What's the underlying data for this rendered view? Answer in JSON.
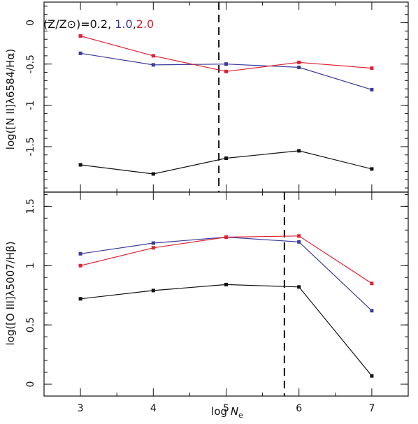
{
  "chart_data": [
    {
      "type": "line",
      "panel": "top",
      "xlabel": "",
      "ylabel": "log([N II]λ6584/Hα)",
      "xlim": [
        2.5,
        7.5
      ],
      "ylim": [
        -2.05,
        0.25
      ],
      "xticks": [
        3,
        4,
        5,
        6,
        7
      ],
      "yticks": [
        0,
        -0.5,
        -1,
        -1.5
      ],
      "ytick_labels": [
        "0",
        "-0.5",
        "-1",
        "-1.5"
      ],
      "vline_x": 4.9,
      "legend": {
        "prefix": "(Z/Z⊙)=",
        "entries": [
          "0.2",
          "1.0",
          "2.0"
        ],
        "colors": [
          "#111111",
          "#3a3a9a",
          "#e02030"
        ],
        "placement": "top-left"
      },
      "x": [
        3,
        4,
        5,
        6,
        7
      ],
      "series": [
        {
          "name": "0.2",
          "color": "#111111",
          "values": [
            -1.72,
            -1.83,
            -1.64,
            -1.55,
            -1.77
          ]
        },
        {
          "name": "1.0",
          "color": "#3a3a9a",
          "values": [
            -0.37,
            -0.51,
            -0.5,
            -0.54,
            -0.81
          ]
        },
        {
          "name": "2.0",
          "color": "#e02030",
          "values": [
            -0.16,
            -0.4,
            -0.59,
            -0.48,
            -0.55
          ]
        }
      ]
    },
    {
      "type": "line",
      "panel": "bottom",
      "xlabel": "log Ne",
      "ylabel": "log([O III]λ5007/Hβ)",
      "xlim": [
        2.5,
        7.5
      ],
      "ylim": [
        -0.1,
        1.62
      ],
      "xticks": [
        3,
        4,
        5,
        6,
        7
      ],
      "xtick_labels": [
        "3",
        "4",
        "5",
        "6",
        "7"
      ],
      "yticks": [
        0,
        0.5,
        1,
        1.5
      ],
      "ytick_labels": [
        "0",
        "0.5",
        "1",
        "1.5"
      ],
      "vline_x": 5.8,
      "x": [
        3,
        4,
        5,
        6,
        7
      ],
      "series": [
        {
          "name": "0.2",
          "color": "#111111",
          "values": [
            0.72,
            0.79,
            0.84,
            0.82,
            0.07
          ]
        },
        {
          "name": "1.0",
          "color": "#3a3a9a",
          "values": [
            1.1,
            1.19,
            1.24,
            1.2,
            0.62
          ]
        },
        {
          "name": "2.0",
          "color": "#e02030",
          "values": [
            1.0,
            1.15,
            1.24,
            1.25,
            0.85
          ]
        }
      ]
    }
  ]
}
